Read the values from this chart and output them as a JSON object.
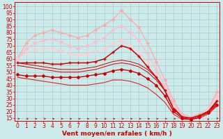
{
  "background_color": "#cceaea",
  "grid_color": "#aacccc",
  "xlabel": "Vent moyen/en rafales ( km/h )",
  "ylabel_ticks": [
    15,
    20,
    25,
    30,
    35,
    40,
    45,
    50,
    55,
    60,
    65,
    70,
    75,
    80,
    85,
    90,
    95,
    100
  ],
  "xlim": [
    -0.3,
    23.3
  ],
  "ylim": [
    13,
    103
  ],
  "x": [
    0,
    1,
    2,
    3,
    4,
    5,
    6,
    7,
    8,
    9,
    10,
    11,
    12,
    13,
    14,
    15,
    16,
    17,
    18,
    19,
    20,
    21,
    22,
    23
  ],
  "series": [
    {
      "y": [
        60,
        72,
        78,
        80,
        82,
        80,
        78,
        76,
        78,
        82,
        86,
        90,
        97,
        90,
        84,
        72,
        58,
        44,
        28,
        18,
        16,
        18,
        22,
        35
      ],
      "color": "#ffaaaa",
      "lw": 0.9,
      "marker": "D",
      "ms": 2.0
    },
    {
      "y": [
        59,
        68,
        72,
        74,
        75,
        73,
        70,
        68,
        70,
        73,
        76,
        82,
        85,
        80,
        74,
        64,
        52,
        40,
        26,
        17,
        16,
        17,
        22,
        32
      ],
      "color": "#ffbbcc",
      "lw": 0.9,
      "marker": "D",
      "ms": 2.0
    },
    {
      "y": [
        60,
        65,
        67,
        68,
        68,
        66,
        64,
        63,
        64,
        66,
        68,
        72,
        74,
        70,
        65,
        58,
        48,
        38,
        24,
        17,
        15,
        17,
        22,
        30
      ],
      "color": "#ffcccc",
      "lw": 0.9,
      "marker": "D",
      "ms": 2.0
    },
    {
      "y": [
        57,
        57,
        57,
        57,
        56,
        56,
        57,
        57,
        57,
        58,
        60,
        65,
        70,
        68,
        62,
        54,
        46,
        36,
        22,
        16,
        15,
        17,
        20,
        28
      ],
      "color": "#cc0000",
      "lw": 1.1,
      "marker": "+",
      "ms": 3.5
    },
    {
      "y": [
        57,
        56,
        55,
        54,
        53,
        52,
        52,
        52,
        53,
        54,
        56,
        58,
        59,
        58,
        56,
        52,
        46,
        38,
        24,
        16,
        15,
        17,
        20,
        27
      ],
      "color": "#cc0000",
      "lw": 0.7,
      "marker": null,
      "ms": 0
    },
    {
      "y": [
        55,
        54,
        53,
        52,
        51,
        50,
        50,
        50,
        51,
        52,
        54,
        56,
        57,
        56,
        54,
        50,
        44,
        36,
        23,
        16,
        15,
        17,
        20,
        26
      ],
      "color": "#cc0000",
      "lw": 0.7,
      "marker": null,
      "ms": 0
    },
    {
      "y": [
        48,
        47,
        47,
        47,
        46,
        46,
        46,
        46,
        47,
        48,
        49,
        51,
        52,
        51,
        49,
        45,
        40,
        32,
        20,
        15,
        14,
        16,
        19,
        25
      ],
      "color": "#cc0000",
      "lw": 1.0,
      "marker": "D",
      "ms": 2.0
    },
    {
      "y": [
        46,
        45,
        44,
        43,
        42,
        41,
        40,
        40,
        40,
        41,
        42,
        44,
        44,
        43,
        41,
        38,
        33,
        27,
        18,
        14,
        14,
        15,
        18,
        24
      ],
      "color": "#dd2222",
      "lw": 0.8,
      "marker": null,
      "ms": 0
    }
  ],
  "axis_fontsize": 5.5,
  "label_fontsize": 6.5
}
